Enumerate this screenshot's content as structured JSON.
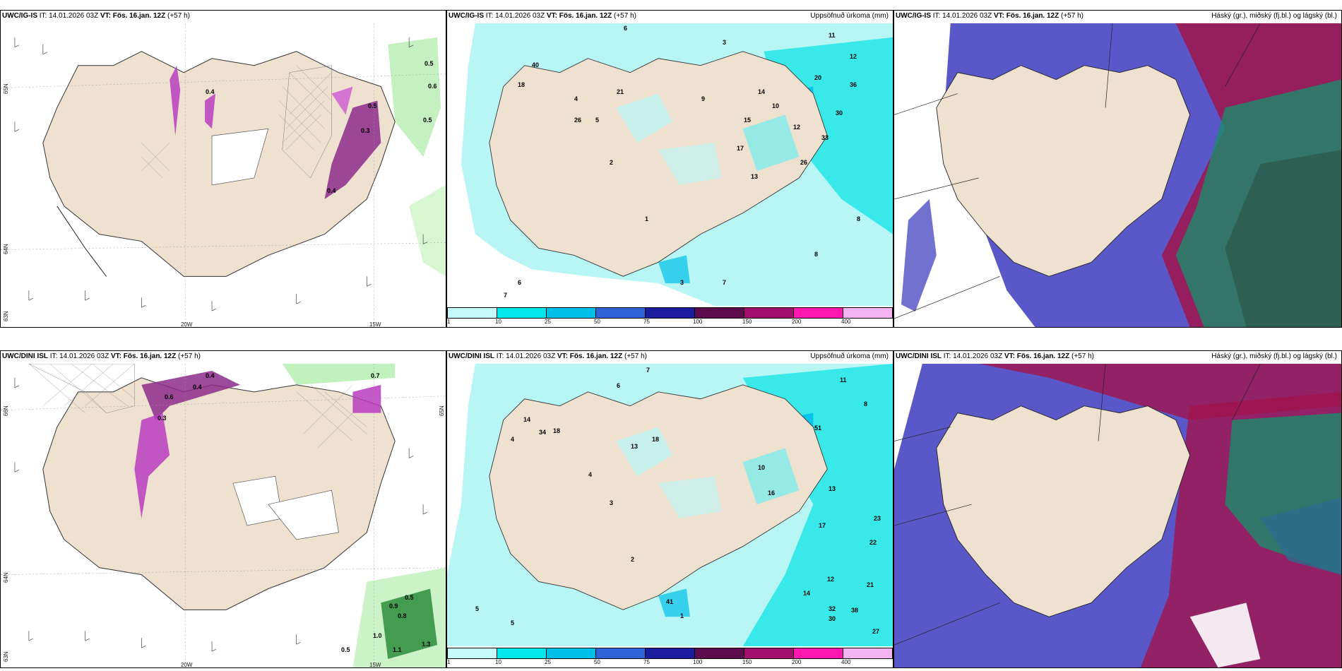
{
  "rows": [
    {
      "model": "UWC/IG-IS",
      "it_label": "IT:",
      "it": "14.01.2026 03Z",
      "vt_label": "VT:",
      "vt": "Fös. 16.jan. 12Z",
      "lead": "(+57 h)",
      "panel_a": {
        "lon_labels": [
          "20W",
          "15W"
        ],
        "lat_labels": [
          "65N",
          "64N",
          "63N"
        ],
        "values": [
          "0.5",
          "0.6",
          "0.5",
          "0.4",
          "0.3",
          "0.4",
          "0.5"
        ]
      },
      "panel_b": {
        "right_title": "Uppsöfnuð úrkoma (mm)",
        "values": [
          "6",
          "3",
          "18",
          "40",
          "12",
          "26",
          "11",
          "36",
          "14",
          "21",
          "10",
          "13",
          "17",
          "9",
          "26",
          "33",
          "20",
          "12",
          "15",
          "30",
          "7",
          "8",
          "4",
          "5",
          "2",
          "1",
          "3",
          "6",
          "7",
          "8"
        ]
      },
      "panel_c": {
        "right_title": "Háský (gr.), miðský (fj.bl.) og lágský (bl.)"
      }
    },
    {
      "model": "UWC/DINI ISL",
      "it_label": "IT:",
      "it": "14.01.2026 03Z",
      "vt_label": "VT:",
      "vt": "Fös. 16.jan. 12Z",
      "lead": "(+57 h)",
      "panel_a": {
        "lon_labels": [
          "20W",
          "15W"
        ],
        "lat_labels": [
          "66N",
          "64N",
          "65N",
          "63N"
        ],
        "values": [
          "0.7",
          "0.6",
          "0.4",
          "0.3",
          "0.5",
          "0.9",
          "0.8",
          "1.0",
          "1.1",
          "1.3",
          "0.5",
          "0.4"
        ]
      },
      "panel_b": {
        "right_title": "Uppsöfnuð úrkoma (mm)",
        "values": [
          "7",
          "6",
          "14",
          "18",
          "34",
          "11",
          "13",
          "18",
          "8",
          "51",
          "16",
          "13",
          "17",
          "10",
          "23",
          "22",
          "30",
          "32",
          "38",
          "14",
          "12",
          "27",
          "21",
          "5",
          "4",
          "3",
          "2",
          "1",
          "4",
          "5",
          "41"
        ]
      },
      "panel_c": {
        "right_title": "Háský (gr.), miðský (fj.bl.) og lágský (bl.)"
      }
    }
  ],
  "colorbar": {
    "ticks": [
      "1",
      "10",
      "25",
      "50",
      "75",
      "100",
      "150",
      "200",
      "400"
    ],
    "colors": [
      "#c4fafa",
      "#00e8ea",
      "#00c0e8",
      "#2e62d6",
      "#1c1c9e",
      "#5c0c4c",
      "#a0106c",
      "#ff18b0",
      "#f4b4f4"
    ]
  },
  "colors": {
    "land": "#efe1cf",
    "sea_precip": "#b8f6f6",
    "cloud_low": "#5a58c8",
    "cloud_mid": "#a0144c",
    "cloud_high": "#1a8c6c",
    "snow_purple": "#b83cc0",
    "rain_green": "#90e090"
  }
}
